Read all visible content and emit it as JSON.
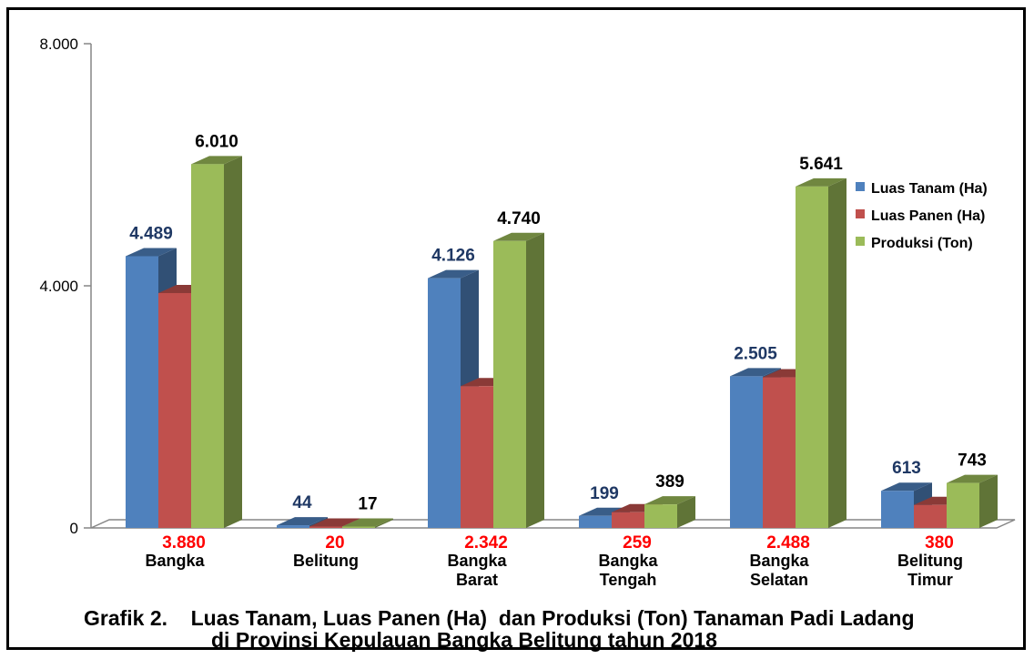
{
  "caption": {
    "line1": "Grafik 2.    Luas Tanam, Luas Panen (Ha)  dan Produksi (Ton) Tanaman Padi Ladang",
    "line2": "di Provinsi Kepulauan Bangka Belitung tahun 2018"
  },
  "colors": {
    "tanam": "#4f81bd",
    "panen": "#c0504d",
    "produksi": "#9bbb59",
    "label_tanam": "#1f3864",
    "label_panen": "#ff0000",
    "label_produksi": "#000000"
  },
  "chart_data": {
    "type": "bar",
    "style": "3d-clustered-column",
    "ylim": [
      0,
      8000
    ],
    "yticks": [
      {
        "value": 0,
        "label": "0"
      },
      {
        "value": 4000,
        "label": "4.000"
      },
      {
        "value": 8000,
        "label": "8.000"
      }
    ],
    "categories": [
      [
        "Bangka"
      ],
      [
        "Belitung"
      ],
      [
        "Bangka",
        "Barat"
      ],
      [
        "Bangka",
        "Tengah"
      ],
      [
        "Bangka",
        "Selatan"
      ],
      [
        "Belitung",
        "Timur"
      ]
    ],
    "legend_position": "right",
    "grid": false,
    "series": [
      {
        "name": "Luas Tanam (Ha)",
        "values": [
          4489,
          44,
          4126,
          199,
          2505,
          613
        ],
        "labels": [
          "4.489",
          "44",
          "4.126",
          "199",
          "2.505",
          "613"
        ]
      },
      {
        "name": "Luas Panen (Ha)",
        "values": [
          3880,
          20,
          2342,
          259,
          2488,
          380
        ],
        "labels": [
          "3.880",
          "20",
          "2.342",
          "259",
          "2.488",
          "380"
        ]
      },
      {
        "name": "Produksi (Ton)",
        "values": [
          6010,
          17,
          4740,
          389,
          5641,
          743
        ],
        "labels": [
          "6.010",
          "17",
          "4.740",
          "389",
          "5.641",
          "743"
        ]
      }
    ]
  }
}
